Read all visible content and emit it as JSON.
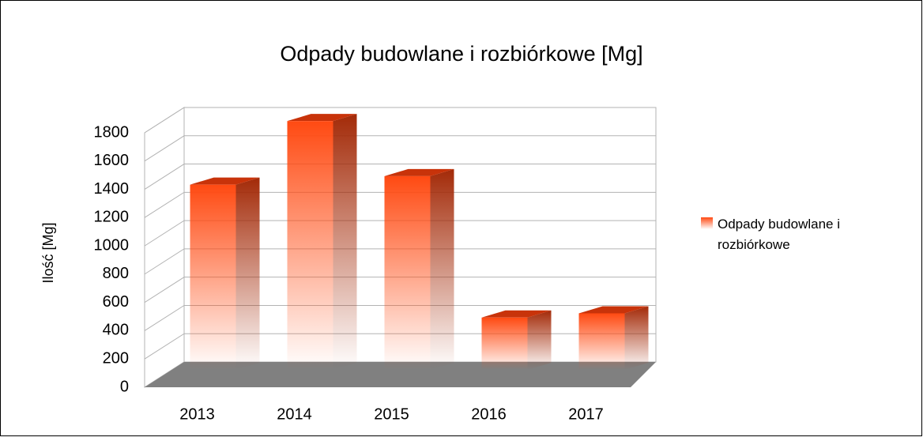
{
  "chart_data": {
    "type": "bar",
    "title": "Odpady budowlane i rozbiórkowe [Mg]",
    "y_label": "Ilość [Mg]",
    "categories": [
      "2013",
      "2014",
      "2015",
      "2016",
      "2017"
    ],
    "series": [
      {
        "name": "Odpady budowlane i rozbiórkowe",
        "color": "#ff4a12",
        "values": [
          1310,
          1760,
          1370,
          370,
          400
        ]
      }
    ],
    "ylim": [
      0,
      1800
    ],
    "yticks": [
      0,
      200,
      400,
      600,
      800,
      1000,
      1200,
      1400,
      1600,
      1800
    ],
    "grid": true,
    "legend": "right"
  }
}
